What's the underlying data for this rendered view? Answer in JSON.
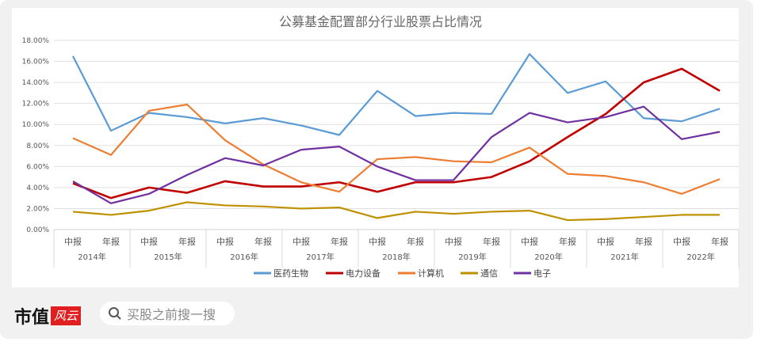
{
  "chart_data": {
    "type": "line",
    "title": "公募基金配置部分行业股票占比情况",
    "x": [
      "中报",
      "年报",
      "中报",
      "年报",
      "中报",
      "年报",
      "中报",
      "年报",
      "中报",
      "年报",
      "中报",
      "年报",
      "中报",
      "年报",
      "中报",
      "年报",
      "中报",
      "年报"
    ],
    "groups": [
      "2014年",
      "2015年",
      "2016年",
      "2017年",
      "2018年",
      "2019年",
      "2020年",
      "2021年",
      "2022年"
    ],
    "yticks": [
      "0.00%",
      "2.00%",
      "4.00%",
      "6.00%",
      "8.00%",
      "10.00%",
      "12.00%",
      "14.00%",
      "16.00%",
      "18.00%"
    ],
    "ylim": [
      0,
      18
    ],
    "grid": true,
    "legend": "bottom",
    "series": [
      {
        "name": "医药生物",
        "color": "#5b9bd5",
        "values": [
          16.5,
          9.4,
          11.1,
          10.7,
          10.1,
          10.6,
          9.9,
          9.0,
          13.2,
          10.8,
          11.1,
          11.0,
          16.7,
          13.0,
          14.1,
          10.6,
          10.3,
          11.5
        ]
      },
      {
        "name": "电力设备",
        "color": "#c00000",
        "values": [
          4.4,
          3.0,
          4.0,
          3.5,
          4.6,
          4.1,
          4.1,
          4.5,
          3.6,
          4.5,
          4.5,
          5.0,
          6.5,
          8.8,
          11.0,
          14.0,
          15.3,
          13.2
        ]
      },
      {
        "name": "计算机",
        "color": "#ed7d31",
        "values": [
          8.7,
          7.1,
          11.3,
          11.9,
          8.5,
          6.2,
          4.5,
          3.6,
          6.7,
          6.9,
          6.5,
          6.4,
          7.8,
          5.3,
          5.1,
          4.5,
          3.4,
          4.8
        ]
      },
      {
        "name": "通信",
        "color": "#bf9000",
        "values": [
          1.7,
          1.4,
          1.8,
          2.6,
          2.3,
          2.2,
          2.0,
          2.1,
          1.1,
          1.7,
          1.5,
          1.7,
          1.8,
          0.9,
          1.0,
          1.2,
          1.4,
          1.4
        ]
      },
      {
        "name": "电子",
        "color": "#7030a0",
        "values": [
          4.6,
          2.5,
          3.4,
          5.2,
          6.8,
          6.1,
          7.6,
          7.9,
          6.0,
          4.7,
          4.7,
          8.8,
          11.1,
          10.2,
          10.7,
          11.7,
          8.6,
          9.3
        ]
      }
    ]
  },
  "footer": {
    "logo_text": "市值",
    "logo_box": "风云",
    "search_placeholder": "买股之前搜一搜"
  }
}
